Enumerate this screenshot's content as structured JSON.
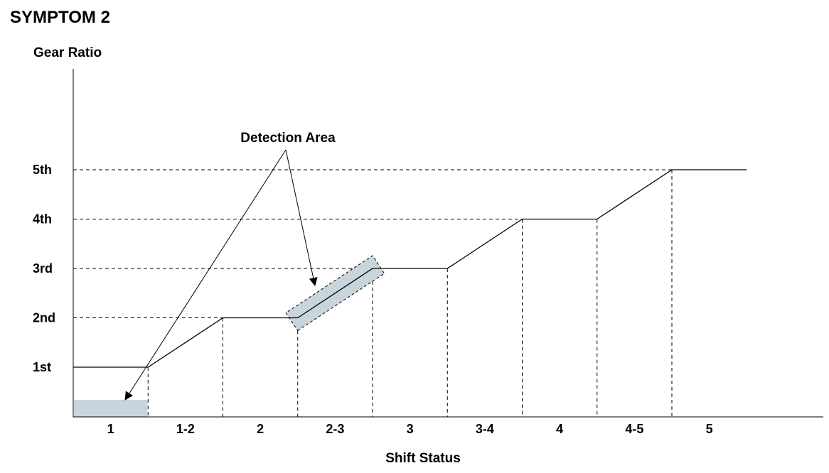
{
  "chart_data": {
    "type": "line",
    "title": "SYMPTOM 2",
    "ylabel": "Gear Ratio",
    "xlabel": "Shift Status",
    "y_categories": [
      "1st",
      "2nd",
      "3rd",
      "4th",
      "5th"
    ],
    "x_categories": [
      "1",
      "1-2",
      "2",
      "2-3",
      "3",
      "3-4",
      "4",
      "4-5",
      "5"
    ],
    "series": [
      {
        "values": [
          1,
          1.5,
          2,
          2.5,
          3,
          3.5,
          4,
          4.5,
          5
        ]
      }
    ],
    "grid": "dashed reference lines",
    "annotations": [
      {
        "text": "Detection Area",
        "targets": [
          "1",
          "2-3"
        ]
      }
    ],
    "colors": {
      "line": "#000000",
      "detection_area": "#c9d5dd"
    }
  }
}
